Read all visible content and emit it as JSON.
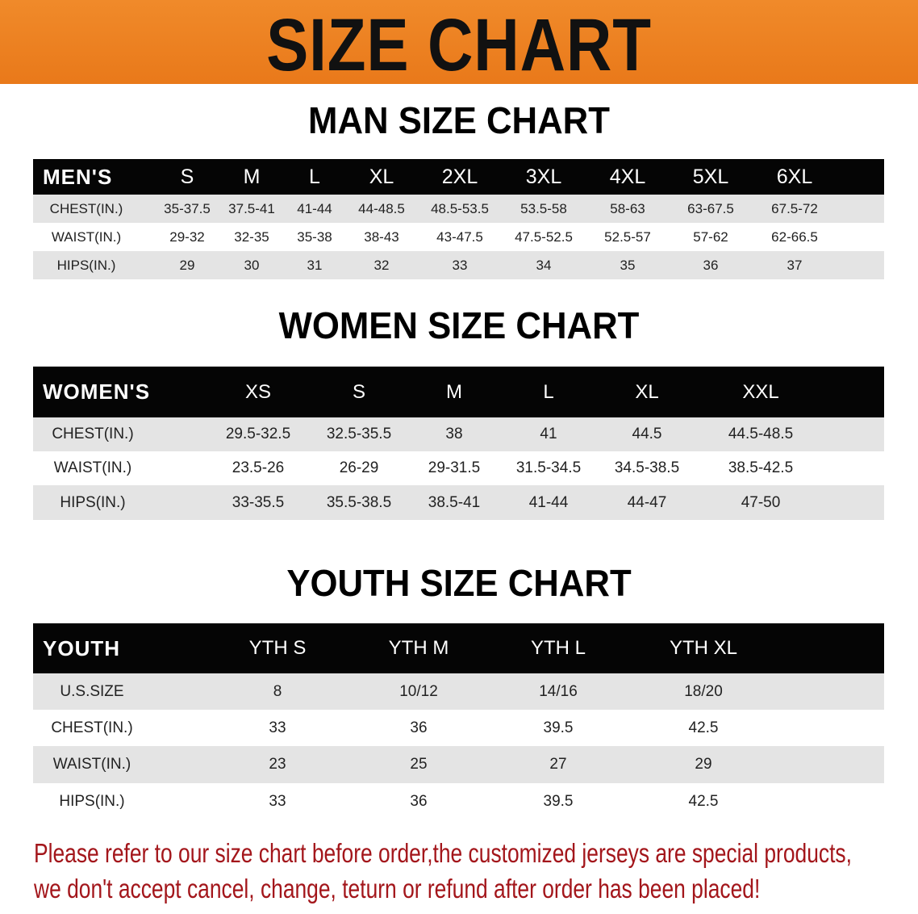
{
  "header": {
    "title": "SIZE CHART",
    "accent_color": "#ec8020"
  },
  "men": {
    "title": "MAN SIZE CHART",
    "columns": [
      "MEN'S",
      "S",
      "M",
      "L",
      "XL",
      "2XL",
      "3XL",
      "4XL",
      "5XL",
      "6XL"
    ],
    "rows": [
      [
        "CHEST(IN.)",
        "35-37.5",
        "37.5-41",
        "41-44",
        "44-48.5",
        "48.5-53.5",
        "53.5-58",
        "58-63",
        "63-67.5",
        "67.5-72"
      ],
      [
        "WAIST(IN.)",
        "29-32",
        "32-35",
        "35-38",
        "38-43",
        "43-47.5",
        "47.5-52.5",
        "52.5-57",
        "57-62",
        "62-66.5"
      ],
      [
        "HIPS(IN.)",
        "29",
        "30",
        "31",
        "32",
        "33",
        "34",
        "35",
        "36",
        "37"
      ]
    ]
  },
  "women": {
    "title": "WOMEN SIZE CHART",
    "columns": [
      "WOMEN'S",
      "XS",
      "S",
      "M",
      "L",
      "XL",
      "XXL"
    ],
    "rows": [
      [
        "CHEST(IN.)",
        "29.5-32.5",
        "32.5-35.5",
        "38",
        "41",
        "44.5",
        "44.5-48.5"
      ],
      [
        "WAIST(IN.)",
        "23.5-26",
        "26-29",
        "29-31.5",
        "31.5-34.5",
        "34.5-38.5",
        "38.5-42.5"
      ],
      [
        "HIPS(IN.)",
        "33-35.5",
        "35.5-38.5",
        "38.5-41",
        "41-44",
        "44-47",
        "47-50"
      ]
    ]
  },
  "youth": {
    "title": "YOUTH SIZE CHART",
    "columns": [
      "YOUTH",
      "YTH S",
      "YTH M",
      "YTH L",
      "YTH XL"
    ],
    "rows": [
      [
        "U.S.SIZE",
        "8",
        "10/12",
        "14/16",
        "18/20"
      ],
      [
        "CHEST(IN.)",
        "33",
        "36",
        "39.5",
        "42.5"
      ],
      [
        "WAIST(IN.)",
        "23",
        "25",
        "27",
        "29"
      ],
      [
        "HIPS(IN.)",
        "33",
        "36",
        "39.5",
        "42.5"
      ]
    ]
  },
  "notice": {
    "line1": "Please refer to our size chart before order,the customized jerseys are special products,",
    "line2": "we don't accept cancel, change, teturn or refund after order has been placed!",
    "color": "#a3161b"
  }
}
